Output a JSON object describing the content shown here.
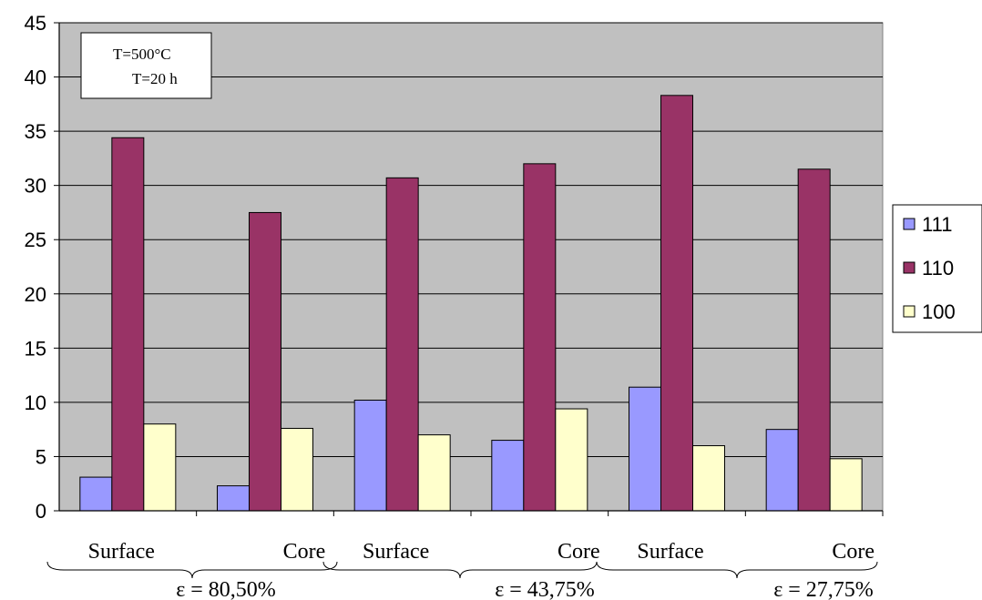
{
  "chart_data": {
    "type": "bar",
    "categories": [
      "Surface",
      "Core",
      "Surface",
      "Core",
      "Surface",
      "Core"
    ],
    "groups": [
      "ε = 80,50%",
      "ε = 43,75%",
      "ε = 27,75%"
    ],
    "series": [
      {
        "name": "111",
        "color": "#9999ff",
        "values": [
          3.1,
          2.3,
          10.2,
          6.5,
          11.4,
          7.5
        ]
      },
      {
        "name": "110",
        "color": "#993366",
        "values": [
          34.4,
          27.5,
          30.7,
          32.0,
          38.3,
          31.5
        ]
      },
      {
        "name": "100",
        "color": "#ffffcc",
        "values": [
          8.0,
          7.6,
          7.0,
          9.4,
          6.0,
          4.8
        ]
      }
    ],
    "annotation": [
      "T=500°C",
      "T=20 h"
    ],
    "ylim": [
      0,
      45
    ],
    "yticks": [
      "0",
      "5",
      "10",
      "15",
      "20",
      "25",
      "30",
      "35",
      "40",
      "45"
    ],
    "plot_background": "#c0c0c0",
    "grid": true,
    "legend_position": "right"
  }
}
